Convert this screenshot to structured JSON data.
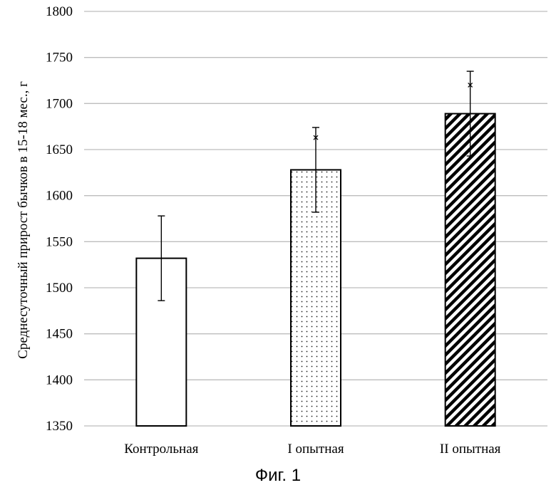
{
  "figure_caption": "Фиг. 1",
  "chart_data": {
    "type": "bar",
    "ylabel": "Среднесуточный прирост бычков в 15-18 мес., г",
    "xlabel": "",
    "ylim": [
      1350,
      1800
    ],
    "yticks": [
      1350,
      1400,
      1450,
      1500,
      1550,
      1600,
      1650,
      1700,
      1750,
      1800
    ],
    "grid": true,
    "categories": [
      "Контрольная",
      "I опытная",
      "II опытная"
    ],
    "values": [
      1532,
      1628,
      1689
    ],
    "error": [
      46,
      46,
      46
    ],
    "markers": [
      null,
      1663,
      1720
    ],
    "fills": [
      "white",
      "dots",
      "diagonal-hatch"
    ]
  }
}
